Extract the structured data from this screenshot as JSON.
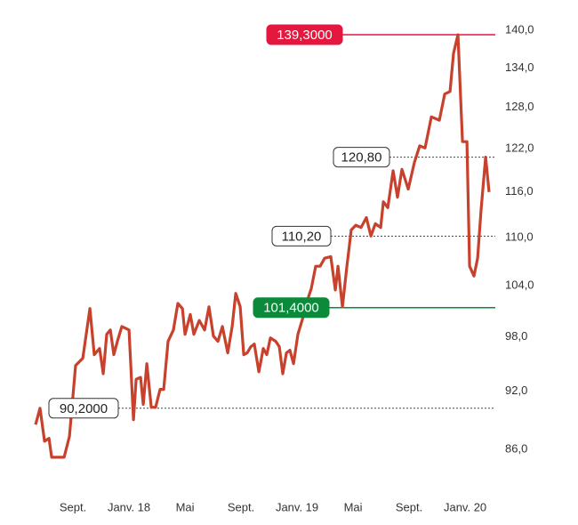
{
  "chart_data": {
    "type": "line",
    "log_scale": true,
    "x": [
      -2.67,
      -2.35,
      -2.03,
      -1.71,
      -1.52,
      -0.63,
      -0.25,
      0.19,
      0.7,
      1.21,
      1.52,
      1.9,
      2.16,
      2.41,
      2.67,
      2.92,
      3.17,
      3.49,
      4.0,
      4.32,
      4.51,
      4.83,
      5.02,
      5.27,
      5.59,
      5.9,
      6.22,
      6.48,
      6.79,
      7.17,
      7.49,
      7.81,
      8.0,
      8.38,
      8.63,
      9.02,
      9.4,
      9.71,
      10.03,
      10.35,
      10.67,
      11.05,
      11.37,
      11.62,
      11.94,
      12.19,
      12.44,
      12.7,
      12.95,
      13.27,
      13.59,
      13.84,
      14.1,
      14.48,
      14.73,
      14.98,
      15.24,
      15.49,
      15.75,
      16.06,
      16.38,
      16.7,
      17.02,
      17.33,
      17.65,
      17.97,
      18.41,
      18.73,
      18.92,
      19.24,
      19.56,
      19.87,
      20.19,
      20.57,
      20.95,
      21.27,
      21.59,
      21.97,
      22.16,
      22.48,
      22.86,
      23.17,
      23.49,
      23.94,
      24.38,
      24.76,
      25.14,
      25.59,
      26.16,
      26.54,
      26.92,
      27.17,
      27.49,
      27.81,
      28.13,
      28.32,
      28.63,
      28.89,
      29.14,
      29.46,
      29.71
    ],
    "series": [
      {
        "color": "#c8412c",
        "values": [
          88.5,
          90.2,
          86.8,
          87.1,
          85.2,
          85.2,
          87.3,
          94.8,
          95.6,
          101.3,
          96.0,
          96.7,
          93.9,
          98.3,
          98.8,
          96.0,
          97.5,
          99.2,
          98.8,
          89.0,
          93.3,
          93.5,
          90.6,
          95.0,
          90.3,
          90.3,
          92.2,
          92.2,
          97.5,
          98.8,
          101.9,
          101.3,
          98.3,
          100.6,
          98.3,
          99.9,
          98.8,
          101.5,
          98.1,
          97.5,
          99.2,
          96.2,
          99.2,
          103.1,
          101.5,
          96.0,
          96.2,
          96.9,
          97.2,
          94.1,
          96.7,
          96.0,
          97.9,
          97.5,
          96.9,
          93.9,
          96.2,
          96.5,
          95.0,
          98.3,
          100.0,
          102.1,
          103.7,
          106.4,
          106.4,
          107.4,
          107.6,
          103.5,
          106.4,
          101.5,
          106.4,
          111.0,
          111.6,
          111.3,
          112.6,
          110.2,
          111.8,
          111.3,
          114.7,
          113.9,
          118.9,
          115.3,
          119.1,
          116.4,
          120.1,
          122.4,
          122.1,
          126.6,
          126.1,
          130.0,
          130.4,
          136.3,
          139.3,
          123.0,
          123.0,
          106.4,
          105.2,
          107.4,
          113.6,
          120.8,
          116.0
        ]
      }
    ],
    "xlim": [
      -2.67,
      29.71
    ],
    "xticks": [
      {
        "value": 0,
        "label": "Sept."
      },
      {
        "value": 4,
        "label": "Janv. 18"
      },
      {
        "value": 8,
        "label": "Mai"
      },
      {
        "value": 12,
        "label": "Sept."
      },
      {
        "value": 16,
        "label": "Janv. 19"
      },
      {
        "value": 20,
        "label": "Mai"
      },
      {
        "value": 24,
        "label": "Sept."
      },
      {
        "value": 28,
        "label": "Janv. 20"
      }
    ],
    "ylim": [
      82.5,
      140.6
    ],
    "yticks": [
      {
        "value": 86,
        "label": "86,0"
      },
      {
        "value": 92,
        "label": "92,0"
      },
      {
        "value": 98,
        "label": "98,0"
      },
      {
        "value": 104,
        "label": "104,0"
      },
      {
        "value": 110,
        "label": "110,0"
      },
      {
        "value": 116,
        "label": "116,0"
      },
      {
        "value": 122,
        "label": "122,0"
      },
      {
        "value": 128,
        "label": "128,0"
      },
      {
        "value": 134,
        "label": "134,0"
      },
      {
        "value": 140,
        "label": "140,0"
      }
    ],
    "annotations": [
      {
        "value": 139.3,
        "label": "139,3000",
        "color": "#e4173e",
        "style": "solid-filled"
      },
      {
        "value": 120.8,
        "label": "120,80",
        "color": "#333333",
        "style": "dashed"
      },
      {
        "value": 110.2,
        "label": "110,20",
        "color": "#333333",
        "style": "dashed"
      },
      {
        "value": 101.4,
        "label": "101,4000",
        "color": "#0a8a3a",
        "style": "solid-filled"
      },
      {
        "value": 90.2,
        "label": "90,2000",
        "color": "#333333",
        "style": "dashed"
      }
    ]
  }
}
